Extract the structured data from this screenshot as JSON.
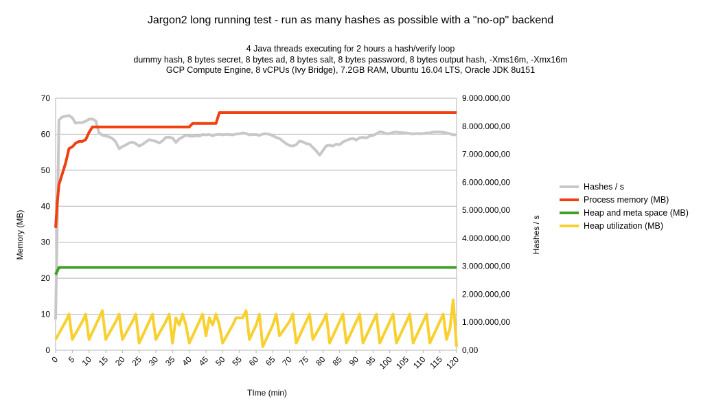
{
  "chart_data": {
    "type": "line",
    "title": "Jargon2 long running test - run as many hashes as possible with a \"no-op\" backend",
    "subtitle": [
      "4 Java threads executing for 2 hours a hash/verify loop",
      "dummy hash, 8 bytes secret, 8 bytes ad, 8 bytes salt, 8 bytes password, 8 bytes output hash, -Xms16m, -Xmx16m",
      "GCP Compute Engine, 8 vCPUs (Ivy Bridge), 7.2GB RAM, Ubuntu 16.04 LTS, Oracle JDK 8u151"
    ],
    "xlabel": "TIme (min)",
    "ylabel_left": "Memory (MB)",
    "ylabel_right": "Hashes / s",
    "xlim": [
      0,
      120
    ],
    "x_ticks": [
      "0",
      "5",
      "10",
      "15",
      "20",
      "25",
      "30",
      "35",
      "40",
      "45",
      "50",
      "55",
      "60",
      "65",
      "70",
      "75",
      "80",
      "85",
      "90",
      "95",
      "100",
      "105",
      "110",
      "115",
      "120"
    ],
    "ylim_left": [
      0,
      70
    ],
    "y_ticks_left": [
      "0",
      "10",
      "20",
      "30",
      "40",
      "50",
      "60",
      "70"
    ],
    "ylim_right": [
      0,
      9000000
    ],
    "y_ticks_right": [
      "0,00",
      "1.000.000,00",
      "2.000.000,00",
      "3.000.000,00",
      "4.000.000,00",
      "5.000.000,00",
      "6.000.000,00",
      "7.000.000,00",
      "8.000.000,00",
      "9.000.000,00"
    ],
    "grid": "horizontal",
    "legend_position": "right",
    "series": [
      {
        "name": "Hashes / s",
        "axis": "right",
        "color": "#c8c8c8",
        "points": [
          [
            0,
            1100000
          ],
          [
            0.5,
            4500000
          ],
          [
            1,
            8220000
          ],
          [
            2,
            8330000
          ],
          [
            3,
            8360000
          ],
          [
            4,
            8380000
          ],
          [
            5,
            8300000
          ],
          [
            6,
            8110000
          ],
          [
            7,
            8130000
          ],
          [
            8,
            8130000
          ],
          [
            9,
            8180000
          ],
          [
            10,
            8250000
          ],
          [
            11,
            8260000
          ],
          [
            12,
            8190000
          ],
          [
            13,
            7760000
          ],
          [
            14,
            7680000
          ],
          [
            15,
            7650000
          ],
          [
            16,
            7620000
          ],
          [
            17,
            7560000
          ],
          [
            18,
            7440000
          ],
          [
            19,
            7200000
          ],
          [
            20,
            7270000
          ],
          [
            21,
            7330000
          ],
          [
            22,
            7400000
          ],
          [
            23,
            7430000
          ],
          [
            24,
            7380000
          ],
          [
            25,
            7290000
          ],
          [
            26,
            7350000
          ],
          [
            27,
            7440000
          ],
          [
            28,
            7520000
          ],
          [
            29,
            7490000
          ],
          [
            30,
            7460000
          ],
          [
            31,
            7400000
          ],
          [
            32,
            7480000
          ],
          [
            33,
            7600000
          ],
          [
            34,
            7610000
          ],
          [
            35,
            7580000
          ],
          [
            36,
            7420000
          ],
          [
            37,
            7550000
          ],
          [
            38,
            7610000
          ],
          [
            39,
            7680000
          ],
          [
            40,
            7650000
          ],
          [
            41,
            7640000
          ],
          [
            42,
            7660000
          ],
          [
            43,
            7650000
          ],
          [
            44,
            7700000
          ],
          [
            45,
            7690000
          ],
          [
            46,
            7700000
          ],
          [
            47,
            7660000
          ],
          [
            48,
            7700000
          ],
          [
            49,
            7710000
          ],
          [
            50,
            7690000
          ],
          [
            51,
            7710000
          ],
          [
            52,
            7700000
          ],
          [
            53,
            7690000
          ],
          [
            54,
            7720000
          ],
          [
            55,
            7730000
          ],
          [
            56,
            7760000
          ],
          [
            57,
            7740000
          ],
          [
            58,
            7690000
          ],
          [
            59,
            7700000
          ],
          [
            60,
            7700000
          ],
          [
            61,
            7670000
          ],
          [
            62,
            7720000
          ],
          [
            63,
            7730000
          ],
          [
            64,
            7710000
          ],
          [
            65,
            7660000
          ],
          [
            66,
            7600000
          ],
          [
            67,
            7560000
          ],
          [
            68,
            7470000
          ],
          [
            69,
            7380000
          ],
          [
            70,
            7310000
          ],
          [
            71,
            7290000
          ],
          [
            72,
            7340000
          ],
          [
            73,
            7470000
          ],
          [
            74,
            7440000
          ],
          [
            75,
            7380000
          ],
          [
            76,
            7360000
          ],
          [
            77,
            7240000
          ],
          [
            78,
            7120000
          ],
          [
            79,
            6970000
          ],
          [
            80,
            7130000
          ],
          [
            81,
            7300000
          ],
          [
            82,
            7320000
          ],
          [
            83,
            7290000
          ],
          [
            84,
            7360000
          ],
          [
            85,
            7340000
          ],
          [
            86,
            7440000
          ],
          [
            87,
            7490000
          ],
          [
            88,
            7540000
          ],
          [
            89,
            7560000
          ],
          [
            90,
            7510000
          ],
          [
            91,
            7590000
          ],
          [
            92,
            7600000
          ],
          [
            93,
            7580000
          ],
          [
            94,
            7650000
          ],
          [
            95,
            7670000
          ],
          [
            96,
            7730000
          ],
          [
            97,
            7800000
          ],
          [
            98,
            7780000
          ],
          [
            99,
            7730000
          ],
          [
            100,
            7740000
          ],
          [
            101,
            7780000
          ],
          [
            102,
            7790000
          ],
          [
            103,
            7770000
          ],
          [
            104,
            7770000
          ],
          [
            105,
            7760000
          ],
          [
            106,
            7740000
          ],
          [
            107,
            7720000
          ],
          [
            108,
            7740000
          ],
          [
            109,
            7730000
          ],
          [
            110,
            7740000
          ],
          [
            111,
            7760000
          ],
          [
            112,
            7760000
          ],
          [
            113,
            7790000
          ],
          [
            114,
            7790000
          ],
          [
            115,
            7790000
          ],
          [
            116,
            7780000
          ],
          [
            117,
            7760000
          ],
          [
            118,
            7730000
          ],
          [
            119,
            7690000
          ],
          [
            120,
            7700000
          ]
        ]
      },
      {
        "name": "Process memory (MB)",
        "axis": "left",
        "color": "#f04010",
        "points": [
          [
            0,
            34
          ],
          [
            0.5,
            41
          ],
          [
            1,
            46
          ],
          [
            1.5,
            47.5
          ],
          [
            2,
            49
          ],
          [
            3,
            52
          ],
          [
            4,
            56
          ],
          [
            5,
            56.5
          ],
          [
            6,
            57.5
          ],
          [
            7,
            58
          ],
          [
            8,
            58
          ],
          [
            9,
            58.5
          ],
          [
            10,
            60.5
          ],
          [
            11,
            62
          ],
          [
            12,
            62
          ],
          [
            14,
            62
          ],
          [
            16,
            62
          ],
          [
            18,
            62
          ],
          [
            20,
            62
          ],
          [
            22,
            62
          ],
          [
            25,
            62
          ],
          [
            28,
            62
          ],
          [
            30,
            62
          ],
          [
            33,
            62
          ],
          [
            36,
            62
          ],
          [
            40,
            62
          ],
          [
            41,
            63
          ],
          [
            42,
            63
          ],
          [
            45,
            63
          ],
          [
            47,
            63
          ],
          [
            48,
            63
          ],
          [
            49,
            66
          ],
          [
            50,
            66
          ],
          [
            120,
            66
          ]
        ]
      },
      {
        "name": "Heap and meta space (MB)",
        "axis": "left",
        "color": "#3ea028",
        "points": [
          [
            0,
            21
          ],
          [
            1,
            23
          ],
          [
            10,
            23
          ],
          [
            30,
            23
          ],
          [
            60,
            23
          ],
          [
            90,
            23
          ],
          [
            120,
            23
          ]
        ]
      },
      {
        "name": "Heap utilization (MB)",
        "axis": "left",
        "color": "#f8d030",
        "points": [
          [
            0,
            3
          ],
          [
            3,
            8
          ],
          [
            4,
            10
          ],
          [
            5,
            3
          ],
          [
            8,
            8
          ],
          [
            9,
            10
          ],
          [
            10,
            3
          ],
          [
            13,
            9
          ],
          [
            14,
            11
          ],
          [
            15,
            3
          ],
          [
            18,
            8
          ],
          [
            19,
            10
          ],
          [
            20,
            3
          ],
          [
            23,
            8
          ],
          [
            24,
            10
          ],
          [
            25,
            2
          ],
          [
            28,
            8
          ],
          [
            29,
            10
          ],
          [
            30,
            3
          ],
          [
            33,
            8
          ],
          [
            34,
            10
          ],
          [
            35,
            2
          ],
          [
            36,
            9
          ],
          [
            37,
            7
          ],
          [
            38,
            10
          ],
          [
            39,
            7
          ],
          [
            40,
            2
          ],
          [
            43,
            8
          ],
          [
            44,
            10
          ],
          [
            45,
            4
          ],
          [
            46,
            9
          ],
          [
            47,
            7
          ],
          [
            48,
            10
          ],
          [
            49,
            7
          ],
          [
            50,
            2
          ],
          [
            53,
            7
          ],
          [
            54,
            9
          ],
          [
            56,
            9
          ],
          [
            57,
            11
          ],
          [
            58,
            3
          ],
          [
            60,
            7
          ],
          [
            61,
            10
          ],
          [
            62,
            1
          ],
          [
            65,
            7
          ],
          [
            66,
            10
          ],
          [
            67,
            4
          ],
          [
            70,
            8
          ],
          [
            71,
            10
          ],
          [
            72,
            2
          ],
          [
            75,
            8
          ],
          [
            76,
            10
          ],
          [
            77,
            3
          ],
          [
            80,
            8
          ],
          [
            81,
            10
          ],
          [
            82,
            2
          ],
          [
            85,
            8
          ],
          [
            86,
            10
          ],
          [
            87,
            2
          ],
          [
            90,
            8
          ],
          [
            91,
            10
          ],
          [
            92,
            2
          ],
          [
            95,
            8
          ],
          [
            96,
            10
          ],
          [
            97,
            2
          ],
          [
            100,
            8
          ],
          [
            101,
            10
          ],
          [
            102,
            2
          ],
          [
            105,
            8
          ],
          [
            106,
            10
          ],
          [
            107,
            2
          ],
          [
            110,
            8
          ],
          [
            111,
            10
          ],
          [
            112,
            2
          ],
          [
            115,
            8
          ],
          [
            116,
            10
          ],
          [
            117,
            3
          ],
          [
            118,
            6
          ],
          [
            119,
            14
          ],
          [
            120,
            1
          ]
        ]
      }
    ]
  }
}
